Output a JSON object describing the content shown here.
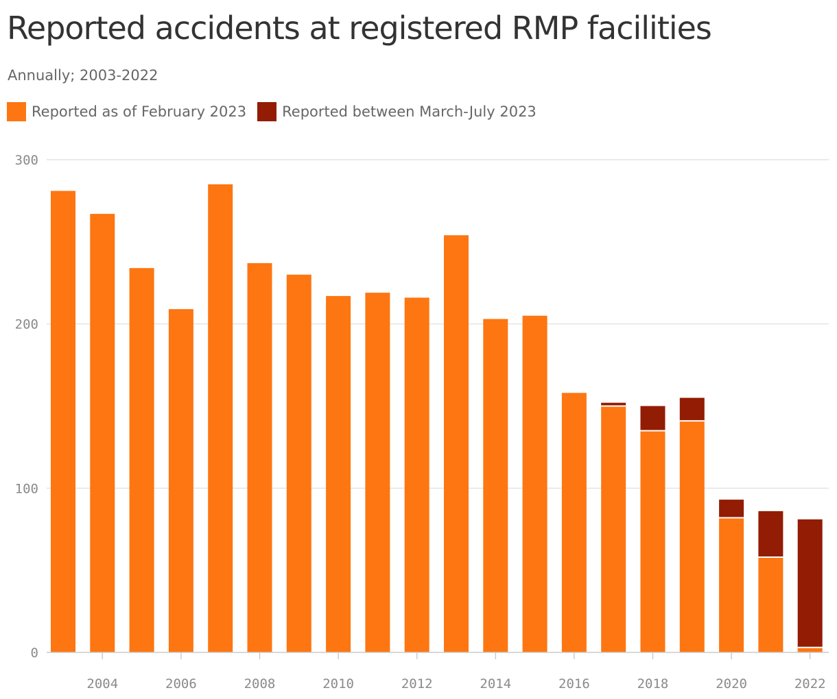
{
  "title": "Reported accidents at registered RMP facilities",
  "subtitle": "Annually; 2003-2022",
  "legend": [
    {
      "label": "Reported as of February 2023",
      "color": "#fd7612"
    },
    {
      "label": "Reported between March-July 2023",
      "color": "#921c04"
    }
  ],
  "chart_data": {
    "type": "bar",
    "stacked": true,
    "categories": [
      2003,
      2004,
      2005,
      2006,
      2007,
      2008,
      2009,
      2010,
      2011,
      2012,
      2013,
      2014,
      2015,
      2016,
      2017,
      2018,
      2019,
      2020,
      2021,
      2022
    ],
    "series": [
      {
        "name": "Reported as of February 2023",
        "color": "#fd7612",
        "values": [
          281,
          267,
          234,
          209,
          285,
          237,
          230,
          217,
          219,
          216,
          254,
          203,
          205,
          158,
          150,
          135,
          141,
          82,
          58,
          3
        ]
      },
      {
        "name": "Reported between March-July 2023",
        "color": "#921c04",
        "values": [
          0,
          0,
          0,
          0,
          0,
          0,
          0,
          0,
          0,
          0,
          0,
          0,
          0,
          0,
          2,
          15,
          14,
          11,
          28,
          78
        ]
      }
    ],
    "ylim": [
      0,
      300
    ],
    "y_ticks": [
      0,
      100,
      200,
      300
    ],
    "x_ticks": [
      2004,
      2006,
      2008,
      2010,
      2012,
      2014,
      2016,
      2018,
      2020,
      2022
    ],
    "grid": true,
    "legend_position": "top-left"
  }
}
